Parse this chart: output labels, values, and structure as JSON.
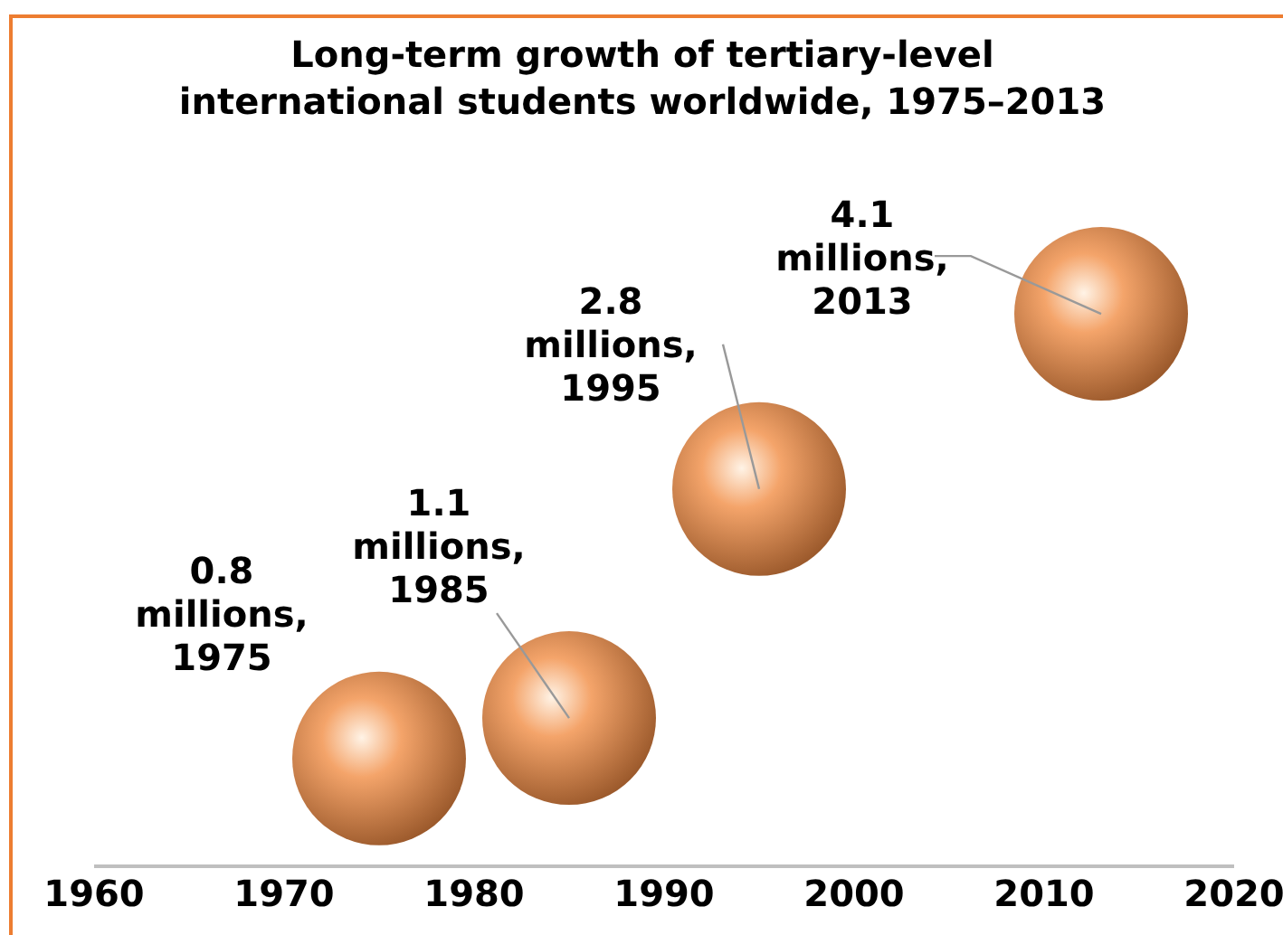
{
  "chart_data": {
    "type": "bubble",
    "title": "Long-term growth of tertiary-level international students worldwide, 1975–2013",
    "x": [
      1975,
      1985,
      1995,
      2013
    ],
    "values": [
      0.8,
      1.1,
      2.8,
      4.1
    ],
    "sizes": [
      1,
      1,
      1,
      1
    ],
    "color": "#f4a46a",
    "value_labels": [
      "0.8",
      "1.1",
      "2.8",
      "4.1"
    ],
    "annotations": [
      "millions, 1975",
      "millions, 1985",
      "millions, 1995",
      "millions, 2013"
    ],
    "xlim": [
      1960,
      2020
    ],
    "xticks": [
      1960,
      1970,
      1980,
      1990,
      2000,
      2010,
      2020
    ],
    "tick_labels": "x",
    "grid": false,
    "legend": false,
    "marker": "circle"
  }
}
